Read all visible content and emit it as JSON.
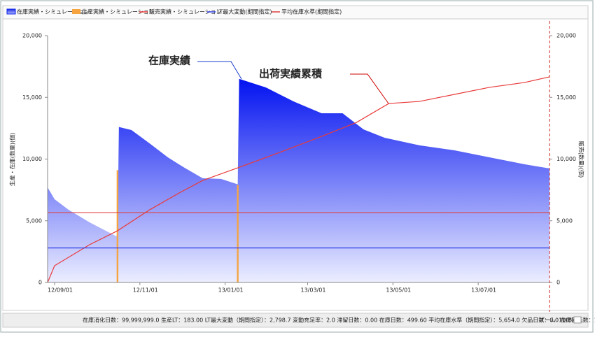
{
  "chart_data": {
    "type": "combo",
    "y_label": "生産・在庫(数量)(個)",
    "y2_label": "販売(数量)(個)",
    "xlim": [
      "12/08/27",
      "13/08/21"
    ],
    "xticks": [
      "12/09/01",
      "12/11/01",
      "13/01/01",
      "13/03/01",
      "13/05/01",
      "13/07/01"
    ],
    "ylim": [
      0,
      20000
    ],
    "yticks": [
      {
        "value": 0,
        "label": "0"
      },
      {
        "value": 5000,
        "label": "5,000"
      },
      {
        "value": 10000,
        "label": "10,000"
      },
      {
        "value": 15000,
        "label": "15,000"
      },
      {
        "value": 20000,
        "label": "20,000"
      }
    ],
    "y2lim": [
      0,
      20000
    ],
    "y2ticks": [
      {
        "value": 0,
        "label": "0"
      },
      {
        "value": 5000,
        "label": "5,000"
      },
      {
        "value": 10000,
        "label": "10,000"
      },
      {
        "value": 15000,
        "label": "15,000"
      },
      {
        "value": 20000,
        "label": "20,000"
      }
    ],
    "series": [
      {
        "name": "在庫実績・シミュレーション",
        "type": "area",
        "color": "#0a1ef0",
        "x": [
          "12/08/27",
          "12/09/01",
          "12/09/11",
          "12/09/26",
          "12/10/16",
          "12/10/17",
          "12/10/26",
          "12/11/08",
          "12/11/21",
          "12/12/03",
          "12/12/16",
          "12/12/29",
          "13/01/10",
          "13/01/11",
          "13/01/30",
          "13/02/19",
          "13/03/11",
          "13/03/26",
          "13/04/10",
          "13/04/25",
          "13/05/20",
          "13/06/14",
          "13/07/09",
          "13/08/03",
          "13/08/21"
        ],
        "values": [
          7700,
          6740,
          5890,
          4870,
          3700,
          12600,
          12350,
          11270,
          10140,
          9290,
          8440,
          8390,
          7950,
          16500,
          15810,
          14670,
          13710,
          13710,
          12400,
          11730,
          11110,
          10710,
          10140,
          9580,
          9240
        ]
      },
      {
        "name": "生産実績・シミュレーション",
        "type": "bar",
        "color": "#f5a440",
        "x": [
          "12/10/16",
          "13/01/10"
        ],
        "values": [
          9100,
          7900
        ]
      },
      {
        "name": "販売実績・シミュレーション",
        "type": "line",
        "color": "#e83a3a",
        "axis": "y2",
        "x": [
          "12/08/27",
          "12/09/01",
          "12/09/26",
          "12/10/16",
          "12/11/08",
          "12/11/30",
          "12/12/16",
          "13/01/10",
          "13/02/09",
          "13/03/11",
          "13/04/05",
          "13/04/28",
          "13/05/20",
          "13/06/14",
          "13/07/09",
          "13/08/03",
          "13/08/21"
        ],
        "values": [
          0,
          1360,
          3060,
          4190,
          5890,
          7310,
          8270,
          9290,
          10540,
          11840,
          12970,
          14500,
          14670,
          15240,
          15810,
          16200,
          16660
        ]
      },
      {
        "name": "LT最大変動(期間指定)",
        "type": "hline",
        "color": "#3040e8",
        "value": 2798.7
      },
      {
        "name": "平均在庫水準(期間指定)",
        "type": "hline",
        "color": "#e04040",
        "value": 5654.0
      }
    ],
    "annotations": [
      {
        "text": "在庫実績",
        "color": "#1a3cc8"
      },
      {
        "text": "出荷実績累積",
        "color": "#cc0000"
      }
    ]
  },
  "status_bar": {
    "text": "在庫消化日数：99,999,999.0 生産LT：183.00 LT最大変動（期間指定）：2,798.7 変動充足率：2.0 滞留日数：0.00 在庫日数：499.60 平均在庫水準（期間指定）：5,654.0 欠品日数：0.0 在庫回転数：1.6",
    "zoom_label": "ズーム",
    "zoom": "100%"
  }
}
